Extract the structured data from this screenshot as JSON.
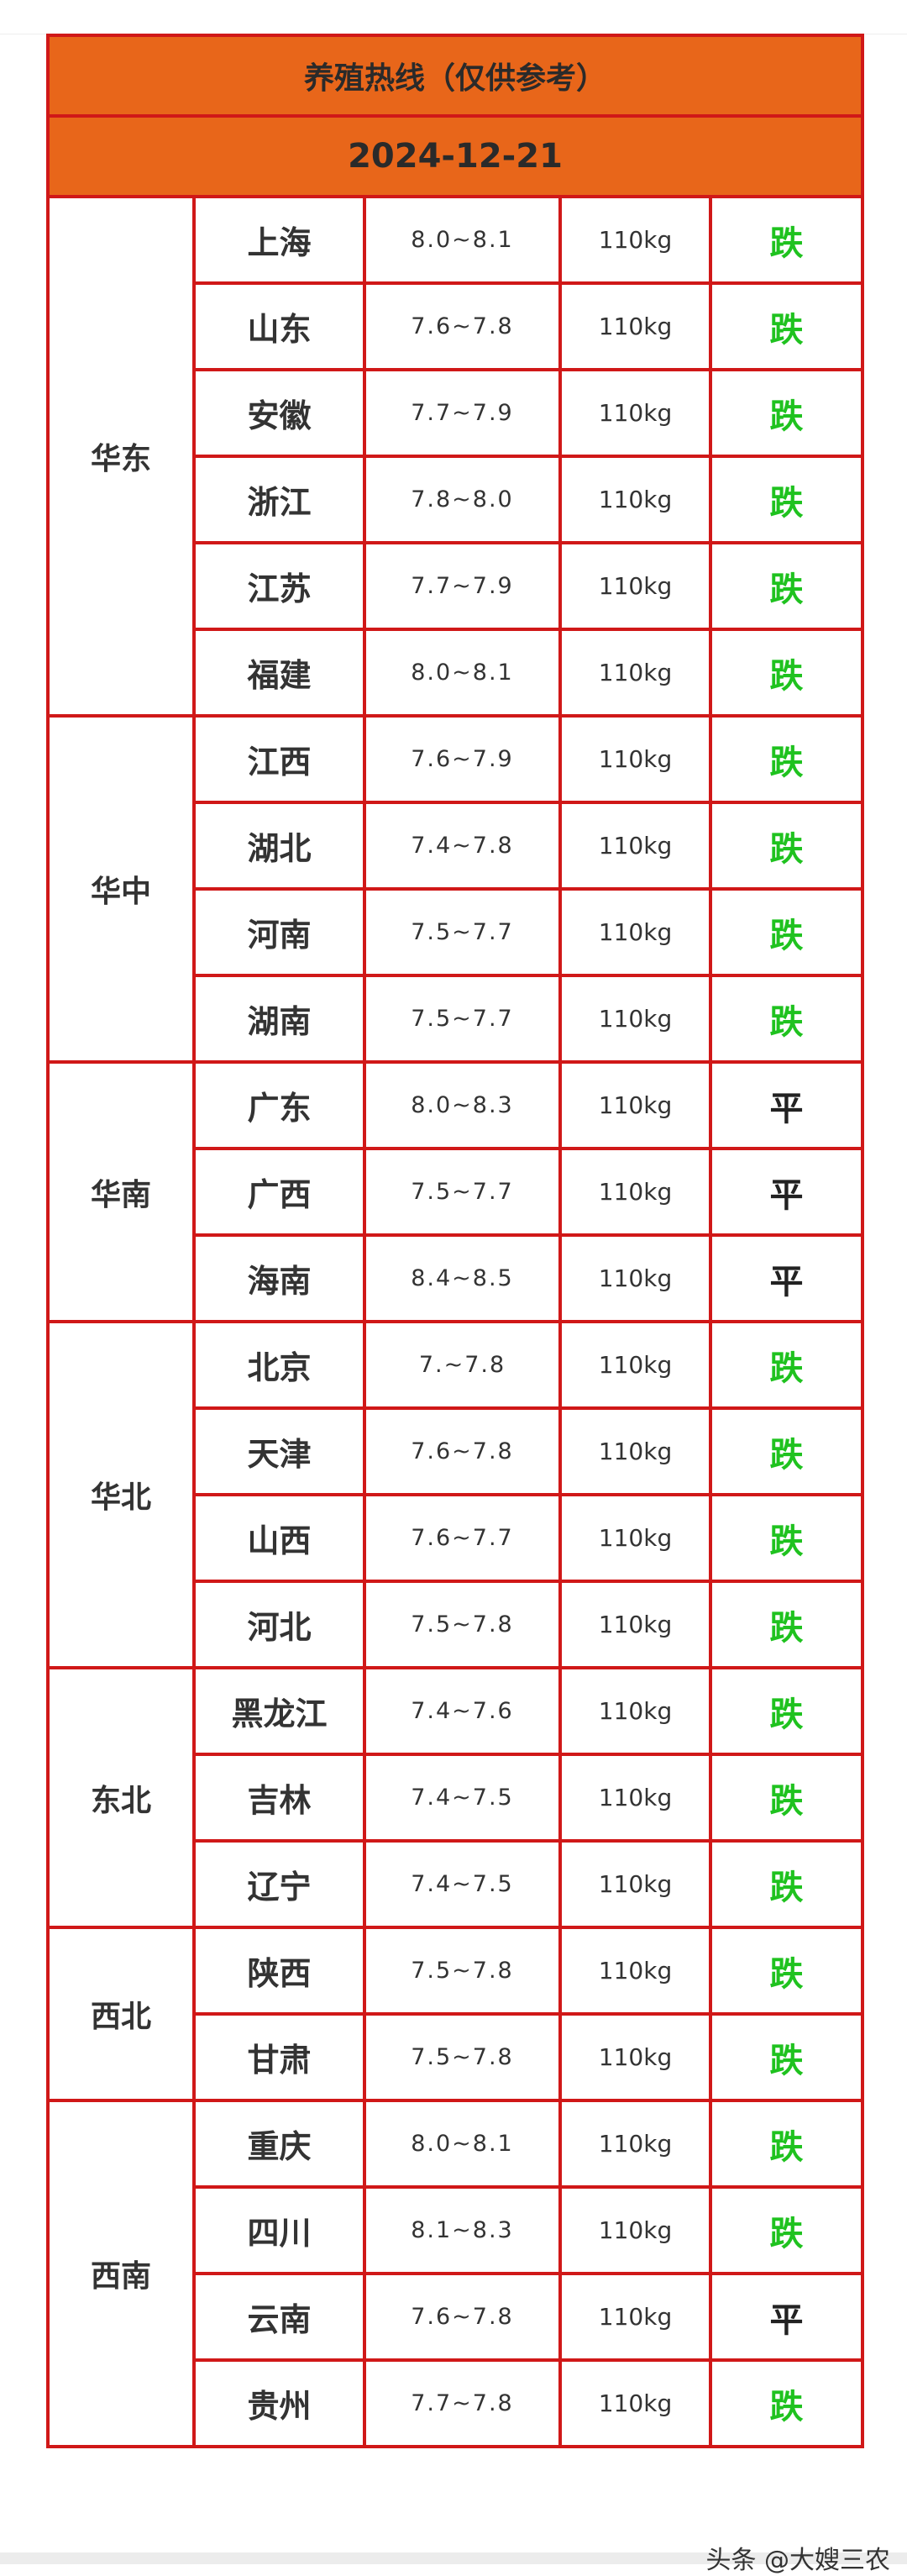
{
  "title": "养殖热线（仅供参考）",
  "date": "2024-12-21",
  "colors": {
    "header_bg": "#e8661a",
    "border": "#d01818",
    "down": "#1fc21f",
    "flat": "#222222"
  },
  "regions": [
    {
      "name": "华东",
      "rows": [
        {
          "province": "上海",
          "price": "8.0~8.1",
          "weight": "110kg",
          "trend": "跌"
        },
        {
          "province": "山东",
          "price": "7.6~7.8",
          "weight": "110kg",
          "trend": "跌"
        },
        {
          "province": "安徽",
          "price": "7.7~7.9",
          "weight": "110kg",
          "trend": "跌"
        },
        {
          "province": "浙江",
          "price": "7.8~8.0",
          "weight": "110kg",
          "trend": "跌"
        },
        {
          "province": "江苏",
          "price": "7.7~7.9",
          "weight": "110kg",
          "trend": "跌"
        },
        {
          "province": "福建",
          "price": "8.0~8.1",
          "weight": "110kg",
          "trend": "跌"
        }
      ]
    },
    {
      "name": "华中",
      "rows": [
        {
          "province": "江西",
          "price": "7.6~7.9",
          "weight": "110kg",
          "trend": "跌"
        },
        {
          "province": "湖北",
          "price": "7.4~7.8",
          "weight": "110kg",
          "trend": "跌"
        },
        {
          "province": "河南",
          "price": "7.5~7.7",
          "weight": "110kg",
          "trend": "跌"
        },
        {
          "province": "湖南",
          "price": "7.5~7.7",
          "weight": "110kg",
          "trend": "跌"
        }
      ]
    },
    {
      "name": "华南",
      "rows": [
        {
          "province": "广东",
          "price": "8.0~8.3",
          "weight": "110kg",
          "trend": "平"
        },
        {
          "province": "广西",
          "price": "7.5~7.7",
          "weight": "110kg",
          "trend": "平"
        },
        {
          "province": "海南",
          "price": "8.4~8.5",
          "weight": "110kg",
          "trend": "平"
        }
      ]
    },
    {
      "name": "华北",
      "rows": [
        {
          "province": "北京",
          "price": "7.~7.8",
          "weight": "110kg",
          "trend": "跌"
        },
        {
          "province": "天津",
          "price": "7.6~7.8",
          "weight": "110kg",
          "trend": "跌"
        },
        {
          "province": "山西",
          "price": "7.6~7.7",
          "weight": "110kg",
          "trend": "跌"
        },
        {
          "province": "河北",
          "price": "7.5~7.8",
          "weight": "110kg",
          "trend": "跌"
        }
      ]
    },
    {
      "name": "东北",
      "rows": [
        {
          "province": "黑龙江",
          "price": "7.4~7.6",
          "weight": "110kg",
          "trend": "跌"
        },
        {
          "province": "吉林",
          "price": "7.4~7.5",
          "weight": "110kg",
          "trend": "跌"
        },
        {
          "province": "辽宁",
          "price": "7.4~7.5",
          "weight": "110kg",
          "trend": "跌"
        }
      ]
    },
    {
      "name": "西北",
      "rows": [
        {
          "province": "陕西",
          "price": "7.5~7.8",
          "weight": "110kg",
          "trend": "跌"
        },
        {
          "province": "甘肃",
          "price": "7.5~7.8",
          "weight": "110kg",
          "trend": "跌"
        }
      ]
    },
    {
      "name": "西南",
      "rows": [
        {
          "province": "重庆",
          "price": "8.0~8.1",
          "weight": "110kg",
          "trend": "跌"
        },
        {
          "province": "四川",
          "price": "8.1~8.3",
          "weight": "110kg",
          "trend": "跌"
        },
        {
          "province": "云南",
          "price": "7.6~7.8",
          "weight": "110kg",
          "trend": "平"
        },
        {
          "province": "贵州",
          "price": "7.7~7.8",
          "weight": "110kg",
          "trend": "跌"
        }
      ]
    }
  ],
  "watermark": "头条 @大嫂三农"
}
